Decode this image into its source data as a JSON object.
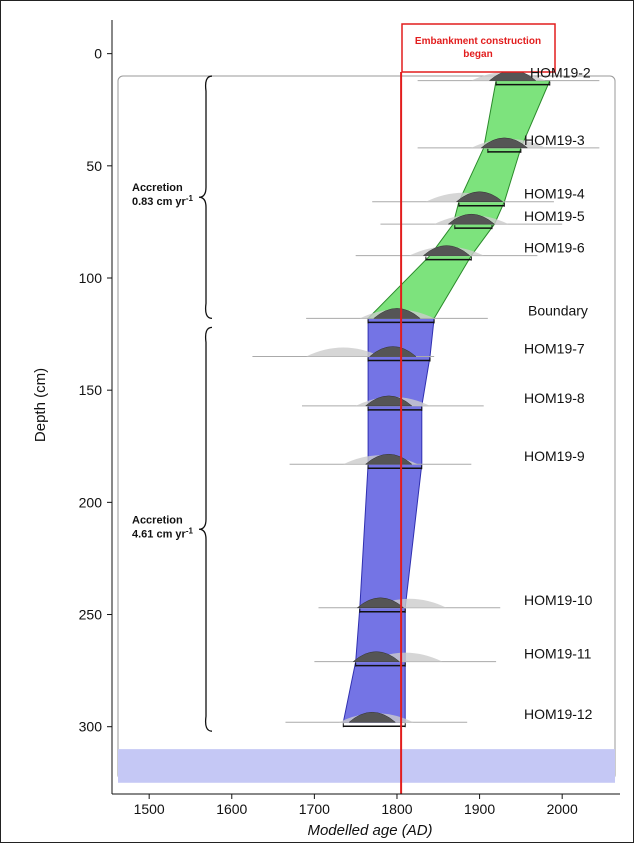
{
  "chart_data": {
    "type": "area",
    "xlabel": "Modelled age (AD)",
    "ylabel": "Depth (cm)",
    "xlim": [
      1455,
      2070
    ],
    "ylim": [
      -15,
      330
    ],
    "y_inverted": true,
    "x_ticks": [
      1500,
      1600,
      1700,
      1800,
      1900,
      2000
    ],
    "y_ticks": [
      0,
      50,
      100,
      150,
      200,
      250,
      300
    ],
    "samples": [
      {
        "name": "HOM19-2",
        "depth": 12,
        "peak": 1940,
        "range": [
          1920,
          1985
        ],
        "prior_peak": 1935
      },
      {
        "name": "HOM19-3",
        "depth": 42,
        "peak": 1930,
        "range": [
          1910,
          1950
        ],
        "prior_peak": 1935
      },
      {
        "name": "HOM19-4",
        "depth": 66,
        "peak": 1900,
        "range": [
          1875,
          1930
        ],
        "prior_peak": 1880
      },
      {
        "name": "HOM19-5",
        "depth": 76,
        "peak": 1890,
        "range": [
          1870,
          1915
        ],
        "prior_peak": 1890
      },
      {
        "name": "HOM19-6",
        "depth": 90,
        "peak": 1860,
        "range": [
          1835,
          1890
        ],
        "prior_peak": 1860
      },
      {
        "name": "Boundary",
        "depth": 118,
        "peak": 1800,
        "range": [
          1765,
          1845
        ],
        "prior_peak": 1800
      },
      {
        "name": "HOM19-7",
        "depth": 135,
        "peak": 1795,
        "range": [
          1765,
          1840
        ],
        "prior_peak": 1735
      },
      {
        "name": "HOM19-8",
        "depth": 157,
        "peak": 1790,
        "range": [
          1765,
          1830
        ],
        "prior_peak": 1795
      },
      {
        "name": "HOM19-9",
        "depth": 183,
        "peak": 1790,
        "range": [
          1765,
          1830
        ],
        "prior_peak": 1780
      },
      {
        "name": "HOM19-10",
        "depth": 247,
        "peak": 1780,
        "range": [
          1755,
          1810
        ],
        "prior_peak": 1815
      },
      {
        "name": "HOM19-11",
        "depth": 271,
        "peak": 1775,
        "range": [
          1750,
          1810
        ],
        "prior_peak": 1810
      },
      {
        "name": "HOM19-12",
        "depth": 298,
        "peak": 1770,
        "range": [
          1735,
          1810
        ],
        "prior_peak": 1775
      }
    ],
    "envelope_upper": {
      "color": "#6fe06f",
      "left": [
        [
          1920,
          12
        ],
        [
          1905,
          42
        ],
        [
          1875,
          66
        ],
        [
          1868,
          76
        ],
        [
          1840,
          90
        ],
        [
          1765,
          118
        ]
      ],
      "right": [
        [
          1985,
          12
        ],
        [
          1950,
          42
        ],
        [
          1930,
          66
        ],
        [
          1918,
          76
        ],
        [
          1890,
          90
        ],
        [
          1845,
          118
        ]
      ]
    },
    "envelope_lower": {
      "color": "#5c5ce0",
      "left": [
        [
          1765,
          118
        ],
        [
          1765,
          135
        ],
        [
          1765,
          157
        ],
        [
          1765,
          183
        ],
        [
          1755,
          247
        ],
        [
          1750,
          271
        ],
        [
          1735,
          298
        ]
      ],
      "right": [
        [
          1845,
          118
        ],
        [
          1840,
          135
        ],
        [
          1830,
          157
        ],
        [
          1830,
          183
        ],
        [
          1810,
          247
        ],
        [
          1810,
          271
        ],
        [
          1810,
          298
        ]
      ]
    },
    "basal_band": {
      "depth_range": [
        310,
        325
      ],
      "color": "#c5c8f5"
    },
    "embankment_year": 1805,
    "annotation": "Embankment construction began",
    "accretion": [
      {
        "label": "Accretion",
        "rate": "0.83 cm yr",
        "exponent": "-1",
        "depth_range": [
          10,
          118
        ]
      },
      {
        "label": "Accretion",
        "rate": "4.61 cm yr",
        "exponent": "-1",
        "depth_range": [
          122,
          302
        ]
      }
    ],
    "grid": false,
    "colors": {
      "red_line": "#e21d1d",
      "density_fill": "#555555",
      "prior_fill": "#cccccc"
    }
  }
}
